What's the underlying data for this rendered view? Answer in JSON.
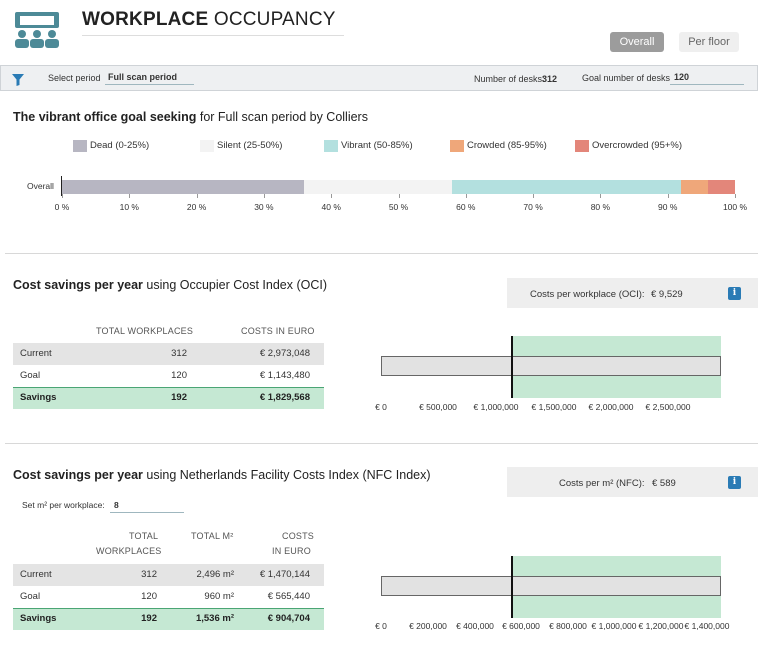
{
  "header": {
    "title_bold": "WORKPLACE",
    "title_rest": " OCCUPANCY",
    "btn_overall": "Overall",
    "btn_perfloor": "Per floor"
  },
  "filter": {
    "select_period_label": "Select period",
    "select_period_value": "Full scan period",
    "desks_label": "Number of desks:",
    "desks_value": "312",
    "goal_label": "Goal number of desks",
    "goal_value": "120"
  },
  "occupancy": {
    "title_bold": "The vibrant office goal seeking",
    "title_rest": " for Full scan period by Colliers",
    "row_label": "Overall",
    "legend": [
      {
        "label": "Dead (0-25%)",
        "color": "#b7b6c2"
      },
      {
        "label": "Silent (25-50%)",
        "color": "#f3f3f3"
      },
      {
        "label": "Vibrant (50-85%)",
        "color": "#b3e0df"
      },
      {
        "label": "Crowded (85-95%)",
        "color": "#efa77a"
      },
      {
        "label": "Overcrowded (95+%)",
        "color": "#e3867a"
      }
    ],
    "segments": [
      36,
      22,
      34,
      4,
      4
    ],
    "ticks": [
      "0 %",
      "10 %",
      "20 %",
      "30 %",
      "40 %",
      "50 %",
      "60 %",
      "70 %",
      "80 %",
      "90 %",
      "100 %"
    ]
  },
  "oci": {
    "title_bold": "Cost savings per year",
    "title_rest": " using Occupier Cost Index (OCI)",
    "info_label": "Costs per workplace (OCI):",
    "info_value": "€ 9,529",
    "headers": [
      "TOTAL WORKPLACES",
      "COSTS IN EURO"
    ],
    "rows": [
      {
        "label": "Current",
        "workplaces": "312",
        "costs": "€ 2,973,048"
      },
      {
        "label": "Goal",
        "workplaces": "120",
        "costs": "€ 1,143,480"
      },
      {
        "label": "Savings",
        "workplaces": "192",
        "costs": "€ 1,829,568"
      }
    ],
    "chart_ticks": [
      "€ 0",
      "€ 500,000",
      "€ 1,000,000",
      "€ 1,500,000",
      "€ 2,000,000",
      "€ 2,500,000"
    ]
  },
  "nfc": {
    "title_bold": "Cost savings per year",
    "title_rest": " using Netherlands Facility Costs Index (NFC Index)",
    "info_label": "Costs per m² (NFC):",
    "info_value": "€ 589",
    "set_m2_label": "Set m² per workplace:",
    "set_m2_value": "8",
    "headers": [
      "TOTAL",
      "WORKPLACES",
      "TOTAL M²",
      "COSTS",
      "IN EURO"
    ],
    "rows": [
      {
        "label": "Current",
        "workplaces": "312",
        "m2": "2,496 m²",
        "costs": "€ 1,470,144"
      },
      {
        "label": "Goal",
        "workplaces": "120",
        "m2": "960 m²",
        "costs": "€ 565,440"
      },
      {
        "label": "Savings",
        "workplaces": "192",
        "m2": "1,536 m²",
        "costs": "€ 904,704"
      }
    ],
    "chart_ticks": [
      "€ 0",
      "€ 200,000",
      "€ 400,000",
      "€ 600,000",
      "€ 800,000",
      "€ 1,000,000",
      "€ 1,200,000",
      "€ 1,400,000"
    ]
  },
  "colors": {
    "accent_blue": "#2a7bb5",
    "teal_icon": "#4d8a97",
    "savings_green": "#c5e8d3",
    "bar_gray": "#e2e2e2"
  }
}
